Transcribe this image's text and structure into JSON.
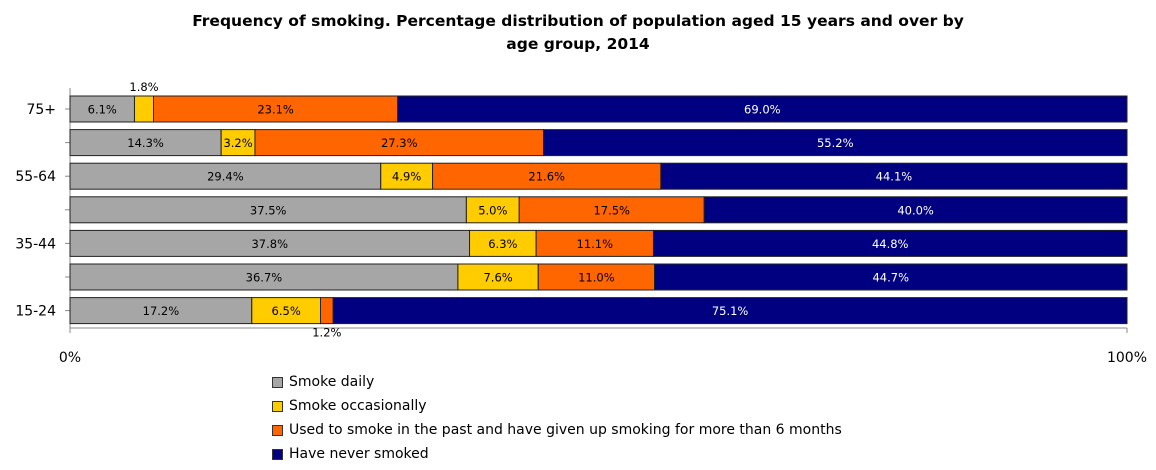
{
  "chart_data": {
    "type": "bar",
    "orientation": "horizontal",
    "stacked": true,
    "title_lines": [
      "Frequency of smoking. Percentage distribution of population aged 15 years and over by",
      "age group, 2014"
    ],
    "categories": [
      "75+",
      "",
      "55-64",
      "",
      "35-44",
      "",
      "15-24"
    ],
    "series": [
      {
        "name": "Smoke daily",
        "color": "#a6a6a6",
        "values": [
          6.1,
          14.3,
          29.4,
          37.5,
          37.8,
          36.7,
          17.2
        ],
        "labels": [
          "6.1%",
          "14.3%",
          "29.4%",
          "37.5%",
          "37.8%",
          "36.7%",
          "17.2%"
        ]
      },
      {
        "name": "Smoke occasionally",
        "color": "#ffcc00",
        "values": [
          1.8,
          3.2,
          4.9,
          5.0,
          6.3,
          7.6,
          6.5
        ],
        "labels": [
          "1.8%",
          "3.2%",
          "4.9%",
          "5.0%",
          "6.3%",
          "7.6%",
          "6.5%"
        ]
      },
      {
        "name": "Used to smoke in the past and have given up smoking for more than 6 months",
        "color": "#ff6600",
        "values": [
          23.1,
          27.3,
          21.6,
          17.5,
          11.1,
          11.0,
          1.2
        ],
        "labels": [
          "23.1%",
          "27.3%",
          "21.6%",
          "17.5%",
          "11.1%",
          "11.0%",
          "1.2%"
        ]
      },
      {
        "name": "Have never smoked",
        "color": "#000080",
        "values": [
          69.0,
          55.2,
          44.1,
          40.0,
          44.8,
          44.7,
          75.1
        ],
        "labels": [
          "69.0%",
          "55.2%",
          "44.1%",
          "40.0%",
          "44.8%",
          "44.7%",
          "75.1%"
        ]
      }
    ],
    "x_ticks": [
      "0%",
      "100%"
    ],
    "xlim": [
      0,
      100
    ],
    "grid": false,
    "legend_position": "bottom"
  }
}
